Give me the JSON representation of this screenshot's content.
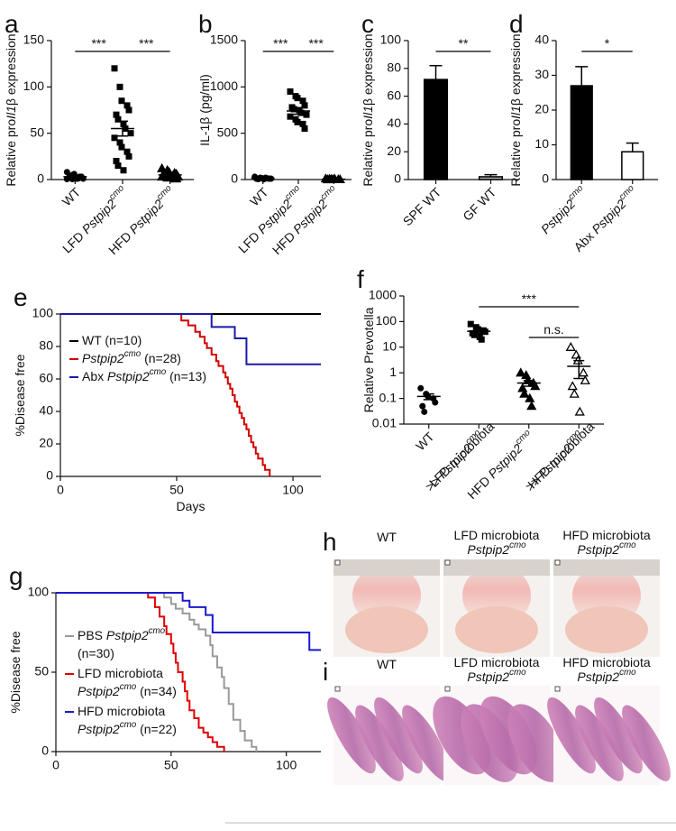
{
  "chart_data": [
    {
      "panel": "a",
      "type": "dotplot",
      "ylabel": "Relative proIl1β expression",
      "categories": [
        "WT",
        "LFD Pstpip2cmo",
        "HFD Pstpip2cmo"
      ],
      "markers": [
        "circle",
        "square",
        "triangle"
      ],
      "points": [
        [
          8,
          5,
          4,
          3,
          3,
          2,
          2,
          1,
          1,
          1,
          0.5,
          0.5,
          6,
          2,
          3
        ],
        [
          120,
          100,
          85,
          80,
          75,
          70,
          65,
          60,
          55,
          50,
          45,
          40,
          35,
          30,
          25,
          20,
          15,
          10
        ],
        [
          12,
          10,
          8,
          7,
          6,
          5,
          5,
          4,
          4,
          3,
          3,
          2,
          2,
          1,
          1
        ]
      ],
      "mean": [
        3,
        55,
        5
      ],
      "sem": [
        1,
        8,
        1
      ],
      "ylim": [
        0,
        150
      ],
      "yticks": [
        0,
        50,
        100,
        150
      ],
      "comparisons": [
        {
          "groups": [
            0,
            1
          ],
          "label": "***"
        },
        {
          "groups": [
            1,
            2
          ],
          "label": "***"
        }
      ],
      "color": "#000000"
    },
    {
      "panel": "b",
      "type": "dotplot",
      "ylabel": "IL-1β (pg/ml)",
      "categories": [
        "WT",
        "LFD Pstpip2cmo",
        "HFD Pstpip2cmo"
      ],
      "markers": [
        "circle",
        "square",
        "triangle"
      ],
      "points": [
        [
          30,
          20,
          15,
          12,
          10,
          8,
          5,
          3,
          20,
          10
        ],
        [
          950,
          900,
          880,
          850,
          800,
          780,
          760,
          750,
          720,
          700,
          680,
          650,
          620,
          600,
          550
        ],
        [
          10,
          5,
          3,
          2,
          1,
          0,
          5,
          8
        ]
      ],
      "mean": [
        15,
        740,
        4
      ],
      "sem": [
        3,
        35,
        1
      ],
      "ylim": [
        0,
        1500
      ],
      "yticks": [
        0,
        500,
        1000,
        1500
      ],
      "comparisons": [
        {
          "groups": [
            0,
            1
          ],
          "label": "***"
        },
        {
          "groups": [
            1,
            2
          ],
          "label": "***"
        }
      ],
      "color": "#000000"
    },
    {
      "panel": "c",
      "type": "bar",
      "ylabel": "Relative proIl1β expression",
      "categories": [
        "SPF WT",
        "GF WT"
      ],
      "values": [
        72,
        2
      ],
      "errors": [
        10,
        1.5
      ],
      "colors": [
        "#000000",
        "#aaaaaa"
      ],
      "ylim": [
        0,
        100
      ],
      "yticks": [
        0,
        20,
        40,
        60,
        80,
        100
      ],
      "comparisons": [
        {
          "groups": [
            0,
            1
          ],
          "label": "**"
        }
      ]
    },
    {
      "panel": "d",
      "type": "bar",
      "ylabel": "Relative proIl1β expression",
      "categories": [
        "Pstpip2cmo",
        "Abx Pstpip2cmo"
      ],
      "values": [
        27,
        8
      ],
      "errors": [
        5.5,
        2.5
      ],
      "colors": [
        "#000000",
        "#ffffff"
      ],
      "ylim": [
        0,
        40
      ],
      "yticks": [
        0,
        10,
        20,
        30,
        40
      ],
      "comparisons": [
        {
          "groups": [
            0,
            1
          ],
          "label": "*"
        }
      ]
    },
    {
      "panel": "e",
      "type": "survival",
      "ylabel": "%Disease free",
      "xlabel": "Days",
      "xlim": [
        0,
        112
      ],
      "xticks": [
        0,
        50,
        100
      ],
      "ylim": [
        0,
        100
      ],
      "yticks": [
        0,
        20,
        40,
        60,
        80,
        100
      ],
      "legend": "upper left",
      "series": [
        {
          "name": "WT (n=10)",
          "color": "#000000",
          "x": [
            0,
            112
          ],
          "values": [
            100,
            100
          ]
        },
        {
          "name": "Pstpip2cmo (n=28)",
          "color": "#d40000",
          "x": [
            0,
            52,
            55,
            58,
            60,
            62,
            63,
            65,
            67,
            68,
            70,
            71,
            72,
            73,
            74,
            75,
            76,
            77,
            78,
            79,
            80,
            81,
            82,
            83,
            84,
            85,
            87,
            88,
            90
          ],
          "values": [
            100,
            96,
            93,
            89,
            86,
            82,
            79,
            75,
            71,
            68,
            64,
            61,
            57,
            54,
            50,
            46,
            43,
            39,
            36,
            32,
            29,
            25,
            21,
            18,
            14,
            11,
            7,
            4,
            0
          ]
        },
        {
          "name": "Abx Pstpip2cmo (n=13)",
          "color": "#1a1aaa",
          "x": [
            0,
            65,
            75,
            80,
            112
          ],
          "values": [
            100,
            92,
            85,
            69,
            69
          ]
        }
      ]
    },
    {
      "panel": "f",
      "type": "dotplot",
      "ylabel": "Relative Prevotella",
      "log": true,
      "categories": [
        "WT",
        [
          "LFD microbiota",
          ">> Pstpip2cmo"
        ],
        "HFD Pstpip2cmo",
        [
          "HFD microbiota",
          ">> Pstpip2cmo"
        ]
      ],
      "markers": [
        "circle",
        "square",
        "triangle",
        "open-triangle"
      ],
      "points": [
        [
          0.25,
          0.15,
          0.12,
          0.1,
          0.07,
          0.05,
          0.03
        ],
        [
          80,
          60,
          50,
          45,
          40,
          35,
          30,
          25,
          20
        ],
        [
          1,
          0.8,
          0.5,
          0.4,
          0.3,
          0.25,
          0.15,
          0.1,
          0.05
        ],
        [
          10,
          5,
          3,
          1,
          0.5,
          0.3,
          0.15,
          0.03
        ]
      ],
      "mean": [
        0.12,
        42,
        0.4,
        1.8
      ],
      "sem": [
        0.03,
        7,
        0.1,
        1.2
      ],
      "ylim": [
        0.01,
        1000
      ],
      "yticks": [
        0.01,
        0.1,
        1,
        10,
        100,
        1000
      ],
      "comparisons": [
        {
          "groups": [
            1,
            3
          ],
          "label": "***"
        },
        {
          "groups": [
            2,
            3
          ],
          "label": "n.s."
        }
      ],
      "color": "#000000"
    },
    {
      "panel": "g",
      "type": "survival",
      "ylabel": "%Disease free",
      "xlim": [
        0,
        115
      ],
      "xticks": [
        0,
        50,
        100
      ],
      "ylim": [
        0,
        100
      ],
      "yticks": [
        0,
        50,
        100
      ],
      "legend": "center left",
      "series": [
        {
          "name": [
            "PBS Pstpip2cmo",
            "(n=30)"
          ],
          "color": "#999999",
          "x": [
            0,
            47,
            50,
            52,
            55,
            58,
            60,
            62,
            65,
            67,
            68,
            70,
            72,
            73,
            75,
            77,
            80,
            82,
            85,
            87
          ],
          "values": [
            100,
            97,
            93,
            90,
            87,
            83,
            80,
            77,
            73,
            67,
            60,
            53,
            47,
            40,
            30,
            20,
            13,
            7,
            3,
            0
          ]
        },
        {
          "name": [
            "LFD microbiota",
            "Pstpip2cmo (n=34)"
          ],
          "color": "#e00000",
          "x": [
            0,
            40,
            43,
            45,
            47,
            48,
            50,
            51,
            52,
            53,
            55,
            56,
            57,
            58,
            60,
            62,
            64,
            66,
            68,
            70,
            73
          ],
          "values": [
            100,
            97,
            91,
            85,
            79,
            74,
            68,
            62,
            56,
            50,
            44,
            38,
            32,
            26,
            21,
            15,
            12,
            9,
            6,
            3,
            0
          ]
        },
        {
          "name": [
            "HFD microbiota",
            "Pstpip2cmo (n=22)"
          ],
          "color": "#1a1acc",
          "x": [
            0,
            55,
            58,
            65,
            68,
            110,
            115
          ],
          "values": [
            100,
            95,
            91,
            86,
            75,
            64,
            64
          ]
        }
      ]
    }
  ],
  "photo_panels": [
    {
      "panel": "h",
      "captions": [
        [
          "WT"
        ],
        [
          "LFD microbiota",
          "Pstpip2cmo"
        ],
        [
          "HFD microbiota",
          "Pstpip2cmo"
        ]
      ]
    },
    {
      "panel": "i",
      "captions": [
        [
          "WT"
        ],
        [
          "LFD microbiota",
          "Pstpip2cmo"
        ],
        [
          "HFD microbiota",
          "Pstpip2cmo"
        ]
      ]
    }
  ]
}
